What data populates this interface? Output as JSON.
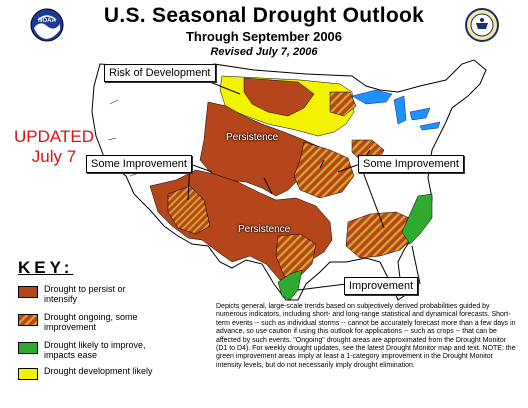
{
  "title": "U.S. Seasonal Drought Outlook",
  "subtitle": "Through September 2006",
  "revised": "Revised July 7, 2006",
  "updated_line1": "UPDATED",
  "updated_line2": "July 7",
  "logos": {
    "left": "noaa",
    "right": "commerce-seal",
    "left_text": "NOAA"
  },
  "callouts": {
    "risk": "Risk of Development",
    "some_improvement_west": "Some Improvement",
    "some_improvement_east": "Some Improvement",
    "improvement": "Improvement"
  },
  "map_labels": {
    "persistence_north": "Persistence",
    "persistence_south": "Persistence"
  },
  "key": {
    "title": "KEY:",
    "items": [
      {
        "label": "Drought to persist or intensify",
        "color": "#b5451b"
      },
      {
        "label": "Drought ongoing, some improvement",
        "color": "#b5451b",
        "pattern": "brown-diagonal-hatch"
      },
      {
        "label": "Drought likely to improve, impacts ease",
        "color": "#2eaa2e"
      },
      {
        "label": "Drought development likely",
        "color": "#f3f300"
      }
    ]
  },
  "colors": {
    "persist": "#b5451b",
    "hatch": "#d7a22c",
    "improve": "#2eaa2e",
    "develop": "#f3f300",
    "water": "#1e90ff",
    "updated": "#e01010"
  },
  "description": "Depicts general, large-scale trends based on subjectively derived probabilities guided by numerous indicators, including short- and long-range statistical and dynamical forecasts. Short-term events -- such as individual storms -- cannot be accurately forecast more than a few days in advance, so use caution if using this outlook for applications -- such as crops -- that can be affected by such events. \"Ongoing\" drought areas are approximated from the Drought Monitor (D1 to D4). For weekly drought updates, see the latest Drought Monitor map and text. NOTE: the green improvement areas imply at least a 1-category improvement in the Drought Monitor intensity levels, but do not necessarily imply drought elimination."
}
